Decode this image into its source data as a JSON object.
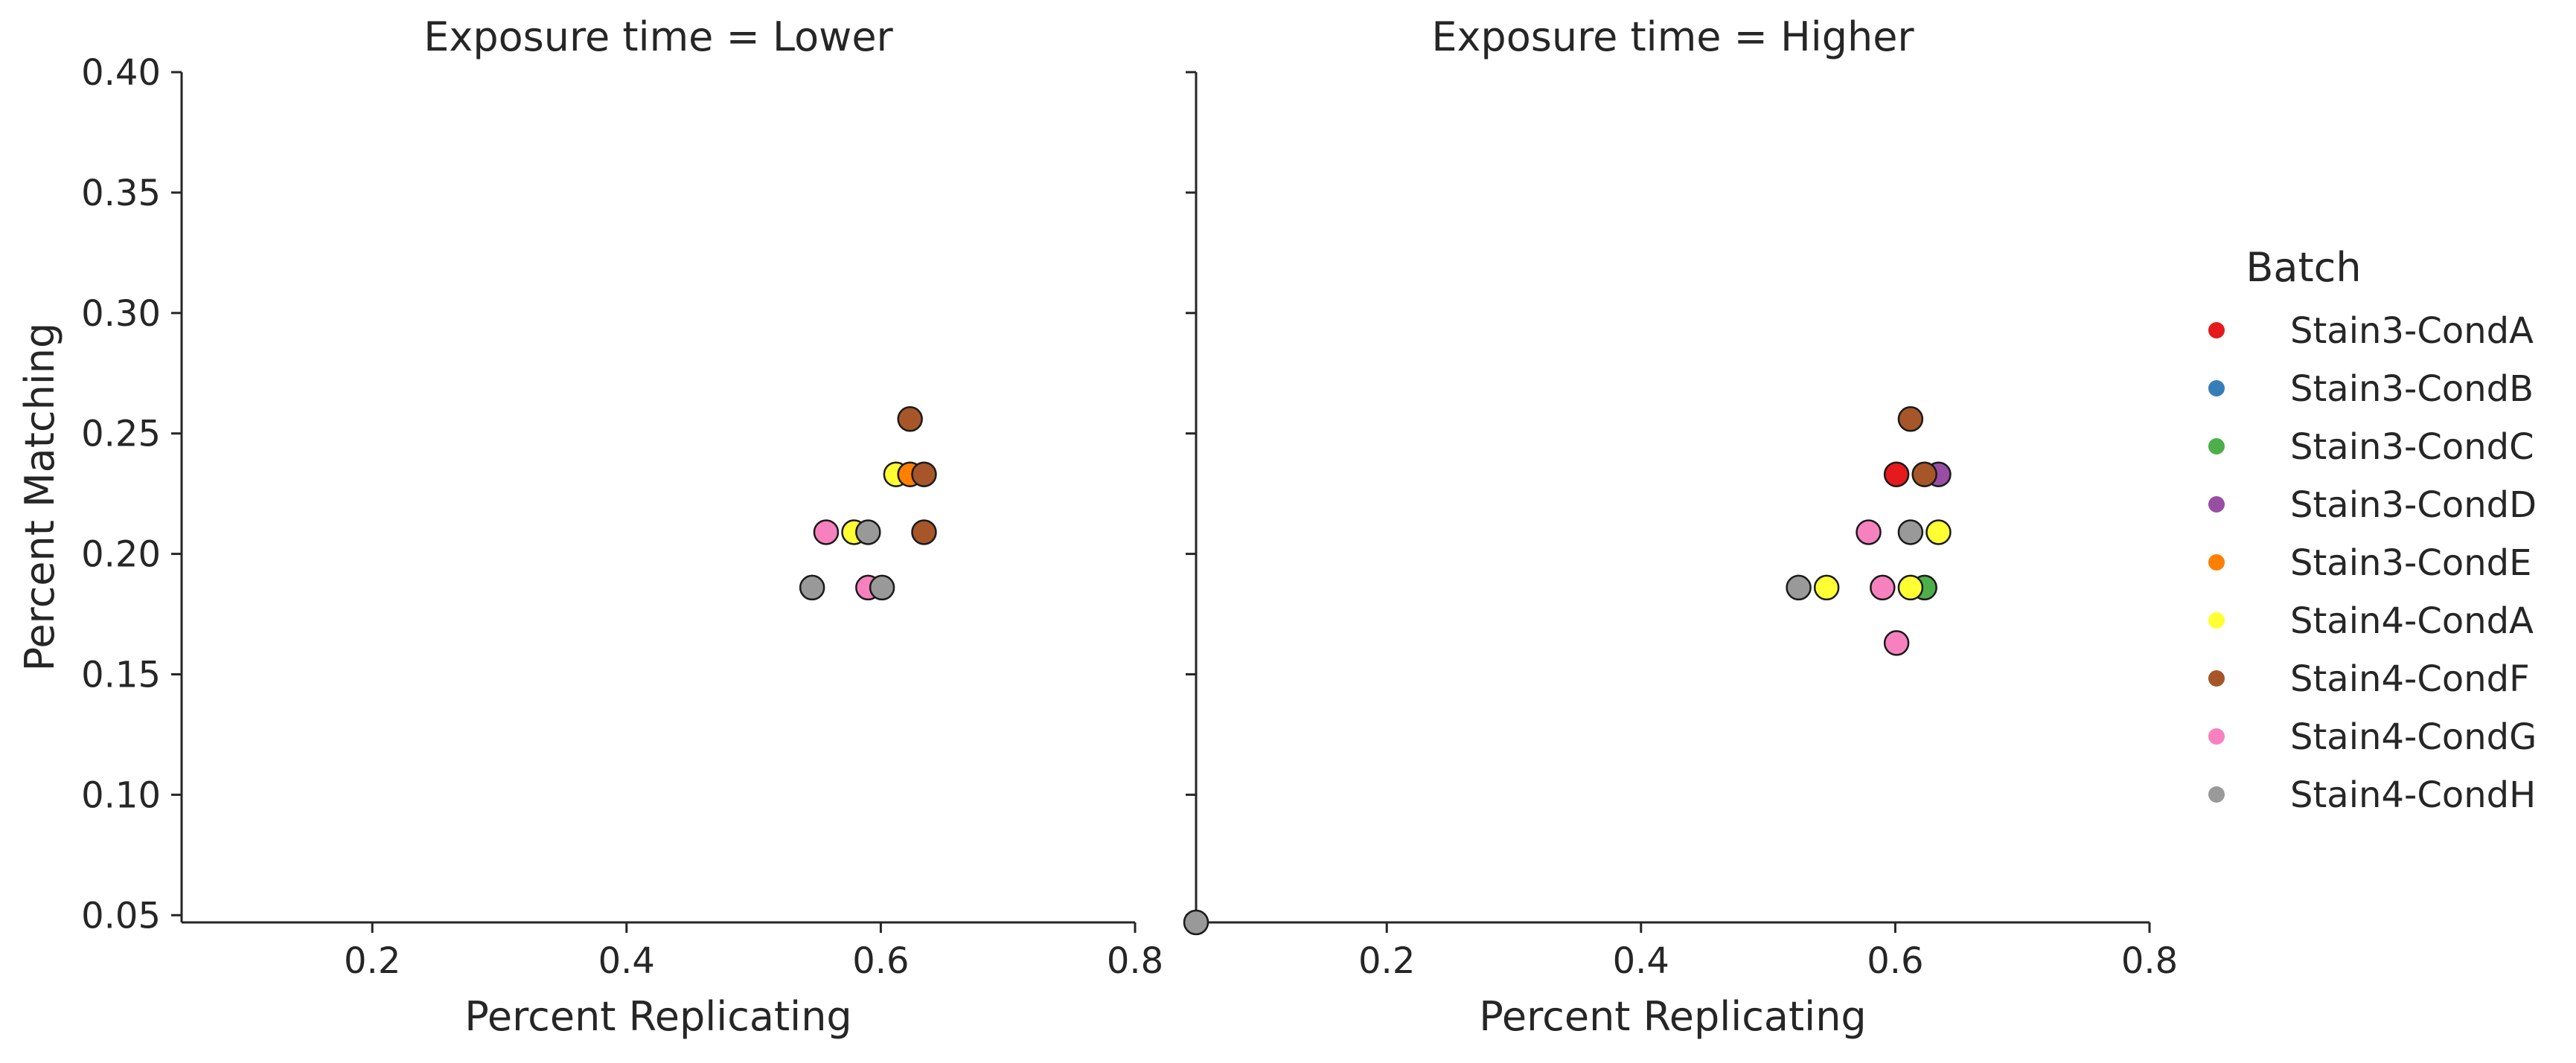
{
  "chart_data": {
    "type": "scatter",
    "ylabel": "Percent Matching",
    "xlabel": "Percent Replicating",
    "xlim": [
      0.05,
      0.8
    ],
    "ylim": [
      0.047,
      0.4
    ],
    "xticks": [
      0.2,
      0.4,
      0.6,
      0.8
    ],
    "xtick_labels": [
      "0.2",
      "0.4",
      "0.6",
      "0.8"
    ],
    "yticks": [
      0.05,
      0.1,
      0.15,
      0.2,
      0.25,
      0.3,
      0.35,
      0.4
    ],
    "ytick_labels": [
      "0.05",
      "0.10",
      "0.15",
      "0.20",
      "0.25",
      "0.30",
      "0.35",
      "0.40"
    ],
    "legend": {
      "title": "Batch",
      "position": "right",
      "entries": [
        {
          "label": "Stain3-CondA",
          "color": "#e41a1c"
        },
        {
          "label": "Stain3-CondB",
          "color": "#377eb8"
        },
        {
          "label": "Stain3-CondC",
          "color": "#4daf4a"
        },
        {
          "label": "Stain3-CondD",
          "color": "#984ea3"
        },
        {
          "label": "Stain3-CondE",
          "color": "#ff7f00"
        },
        {
          "label": "Stain4-CondA",
          "color": "#ffff33"
        },
        {
          "label": "Stain4-CondF",
          "color": "#a65628"
        },
        {
          "label": "Stain4-CondG",
          "color": "#f781bf"
        },
        {
          "label": "Stain4-CondH",
          "color": "#999999"
        }
      ]
    },
    "panels": [
      {
        "title": "Exposure time = Lower",
        "points": [
          {
            "x": 0.623,
            "y": 0.256,
            "batch": "Stain4-CondF"
          },
          {
            "x": 0.612,
            "y": 0.233,
            "batch": "Stain4-CondA"
          },
          {
            "x": 0.623,
            "y": 0.233,
            "batch": "Stain3-CondE"
          },
          {
            "x": 0.634,
            "y": 0.233,
            "batch": "Stain4-CondF"
          },
          {
            "x": 0.557,
            "y": 0.209,
            "batch": "Stain4-CondG"
          },
          {
            "x": 0.579,
            "y": 0.209,
            "batch": "Stain4-CondA"
          },
          {
            "x": 0.59,
            "y": 0.209,
            "batch": "Stain4-CondH"
          },
          {
            "x": 0.634,
            "y": 0.209,
            "batch": "Stain4-CondF"
          },
          {
            "x": 0.546,
            "y": 0.186,
            "batch": "Stain4-CondH"
          },
          {
            "x": 0.59,
            "y": 0.186,
            "batch": "Stain4-CondG"
          },
          {
            "x": 0.601,
            "y": 0.186,
            "batch": "Stain4-CondH"
          }
        ]
      },
      {
        "title": "Exposure time = Higher",
        "points": [
          {
            "x": 0.612,
            "y": 0.256,
            "batch": "Stain4-CondF"
          },
          {
            "x": 0.601,
            "y": 0.233,
            "batch": "Stain3-CondA"
          },
          {
            "x": 0.634,
            "y": 0.233,
            "batch": "Stain3-CondD"
          },
          {
            "x": 0.623,
            "y": 0.233,
            "batch": "Stain4-CondF"
          },
          {
            "x": 0.579,
            "y": 0.209,
            "batch": "Stain4-CondG"
          },
          {
            "x": 0.612,
            "y": 0.209,
            "batch": "Stain4-CondH"
          },
          {
            "x": 0.634,
            "y": 0.209,
            "batch": "Stain4-CondA"
          },
          {
            "x": 0.524,
            "y": 0.186,
            "batch": "Stain4-CondH"
          },
          {
            "x": 0.546,
            "y": 0.186,
            "batch": "Stain4-CondA"
          },
          {
            "x": 0.59,
            "y": 0.186,
            "batch": "Stain4-CondG"
          },
          {
            "x": 0.623,
            "y": 0.186,
            "batch": "Stain3-CondC"
          },
          {
            "x": 0.612,
            "y": 0.186,
            "batch": "Stain4-CondA"
          },
          {
            "x": 0.601,
            "y": 0.163,
            "batch": "Stain4-CondG"
          },
          {
            "x": 0.05,
            "y": 0.047,
            "batch": "Stain4-CondH"
          }
        ]
      }
    ]
  }
}
